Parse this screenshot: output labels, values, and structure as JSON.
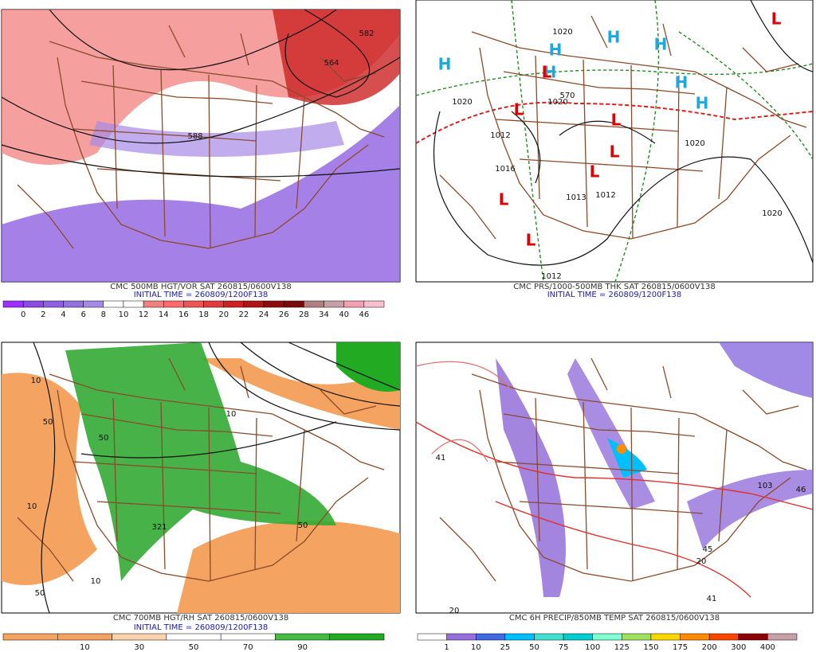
{
  "panels": [
    {
      "title": "CMC 500MB HGT/VOR SAT 260815/0600V138",
      "initial": "INITIAL TIME = 260809/1200F138",
      "colorbar": {
        "labels": [
          "0",
          "2",
          "4",
          "6",
          "8",
          "10",
          "12",
          "14",
          "16",
          "18",
          "20",
          "22",
          "24",
          "26",
          "28",
          "34",
          "40",
          "46"
        ],
        "colors": [
          "#9b30ff",
          "#8a4be0",
          "#8f60e0",
          "#9370db",
          "#a78ae6",
          "#ffffff",
          "#ffffff",
          "#f08080",
          "#ff6a6a",
          "#ee5555",
          "#e03c3c",
          "#cc2222",
          "#b01515",
          "#900c0c",
          "#7a0a0a",
          "#b08080",
          "#c8a0a8",
          "#f4a0b4",
          "#f8c0cc"
        ]
      },
      "map_labels": [
        "588",
        "582",
        "564"
      ]
    },
    {
      "title": "CMC PRS/1000-500MB THK SAT 260815/0600V138",
      "initial": "INITIAL TIME = 260809/1200F138",
      "map_labels": [
        "H",
        "H",
        "H",
        "H",
        "H",
        "H",
        "H",
        "L",
        "L",
        "L",
        "L",
        "L",
        "L",
        "L",
        "L",
        "1020",
        "1020",
        "1020",
        "1020",
        "1012",
        "1016",
        "1013",
        "1012",
        "1012",
        "1020",
        "570"
      ]
    },
    {
      "title": "CMC 700MB HGT/RH SAT 260815/0600V138",
      "initial": "INITIAL TIME = 260809/1200F138",
      "colorbar": {
        "labels": [
          "10",
          "30",
          "50",
          "70",
          "90"
        ],
        "colors": [
          "#f4a460",
          "#f4a460",
          "#fbd3ad",
          "#ffffff",
          "#ffffff",
          "#44bb44",
          "#22aa22"
        ]
      },
      "map_labels": [
        "10",
        "50",
        "50",
        "10",
        "50",
        "10",
        "50",
        "10",
        "321"
      ]
    },
    {
      "title": "CMC 6H PRECIP/850MB TEMP SAT 260815/0600V138",
      "colorbar": {
        "labels": [
          "1",
          "10",
          "25",
          "50",
          "75",
          "100",
          "125",
          "150",
          "175",
          "200",
          "300",
          "400"
        ],
        "colors": [
          "#ffffff",
          "#9370db",
          "#4169e1",
          "#00bfff",
          "#40e0d0",
          "#00ced1",
          "#7fffd4",
          "#a0e060",
          "#ffd700",
          "#ff8c00",
          "#ff4500",
          "#8b0000",
          "#c8a0a8"
        ]
      },
      "map_labels": [
        "41",
        "45",
        "103",
        "46",
        "41",
        "20",
        "20"
      ]
    }
  ]
}
